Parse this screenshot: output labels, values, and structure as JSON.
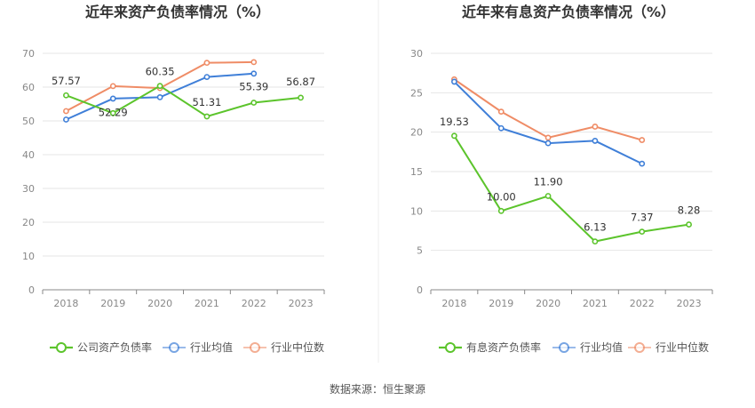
{
  "colors": {
    "series1": "#5cc42c",
    "series2": "#3f7fd8",
    "series3": "#ef8c66",
    "grid": "#e6e6e6",
    "axis": "#888888"
  },
  "source": "数据来源：恒生聚源",
  "chart_data": [
    {
      "type": "line",
      "title": "近年来资产负债率情况（%）",
      "categories": [
        "2018",
        "2019",
        "2020",
        "2021",
        "2022",
        "2023"
      ],
      "ylim": [
        0,
        70
      ],
      "yticks": [
        "0",
        "10",
        "20",
        "30",
        "40",
        "50",
        "60",
        "70"
      ],
      "series": [
        {
          "name": "公司资产负债率",
          "values": [
            57.57,
            52.29,
            60.35,
            51.31,
            55.39,
            56.87
          ],
          "labels": [
            "57.57",
            "52.29",
            "60.35",
            "51.31",
            "55.39",
            "56.87"
          ]
        },
        {
          "name": "行业均值",
          "values": [
            50.4,
            56.6,
            57.0,
            63.0,
            64.0,
            null
          ]
        },
        {
          "name": "行业中位数",
          "values": [
            52.9,
            60.3,
            59.7,
            67.2,
            67.4,
            null
          ]
        }
      ]
    },
    {
      "type": "line",
      "title": "近年来有息资产负债率情况（%）",
      "categories": [
        "2018",
        "2019",
        "2020",
        "2021",
        "2022",
        "2023"
      ],
      "ylim": [
        0,
        30
      ],
      "yticks": [
        "0",
        "5",
        "10",
        "15",
        "20",
        "25",
        "30"
      ],
      "series": [
        {
          "name": "有息资产负债率",
          "values": [
            19.53,
            10.0,
            11.9,
            6.13,
            7.37,
            8.28
          ],
          "labels": [
            "19.53",
            "10.00",
            "11.90",
            "6.13",
            "7.37",
            "8.28"
          ]
        },
        {
          "name": "行业均值",
          "values": [
            26.4,
            20.5,
            18.6,
            18.9,
            16.0,
            null
          ]
        },
        {
          "name": "行业中位数",
          "values": [
            26.7,
            22.6,
            19.3,
            20.7,
            19.0,
            null
          ]
        }
      ]
    }
  ]
}
